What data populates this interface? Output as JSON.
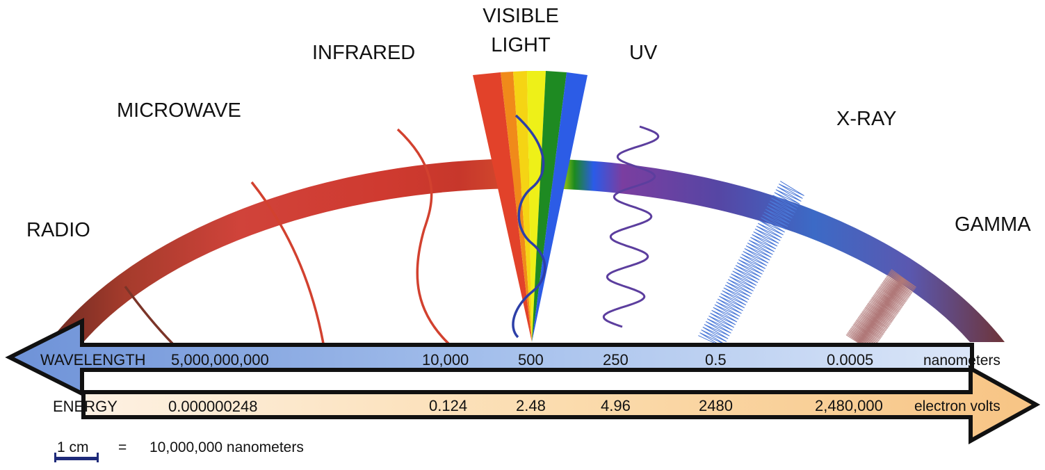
{
  "bands": {
    "radio": "RADIO",
    "microwave": "MICROWAVE",
    "infrared": "INFRARED",
    "visible_line1": "VISIBLE",
    "visible_line2": "LIGHT",
    "uv": "UV",
    "xray": "X-RAY",
    "gamma": "GAMMA"
  },
  "wavelength": {
    "label": "WAVELENGTH",
    "values": [
      "5,000,000,000",
      "10,000",
      "500",
      "250",
      "0.5",
      "0.0005"
    ],
    "unit": "nanometers"
  },
  "energy": {
    "label": "ENERGY",
    "values": [
      "0.000000248",
      "0.124",
      "2.48",
      "4.96",
      "2480",
      "2,480,000"
    ],
    "unit": "electron volts"
  },
  "scale": {
    "length": "1 cm",
    "equals": "=",
    "value": "10,000,000 nanometers"
  },
  "colors": {
    "radio": "#7a3328",
    "microwave": "#cf3b30",
    "infrared": "#cc3a2c",
    "uv": "#6a44a0",
    "xray": "#3a6ac8",
    "gamma": "#7c3b4a",
    "wavelength_arrow": "#8aaee0",
    "energy_arrow": "#f9d7a6",
    "scale_bar": "#1e2a7a"
  }
}
